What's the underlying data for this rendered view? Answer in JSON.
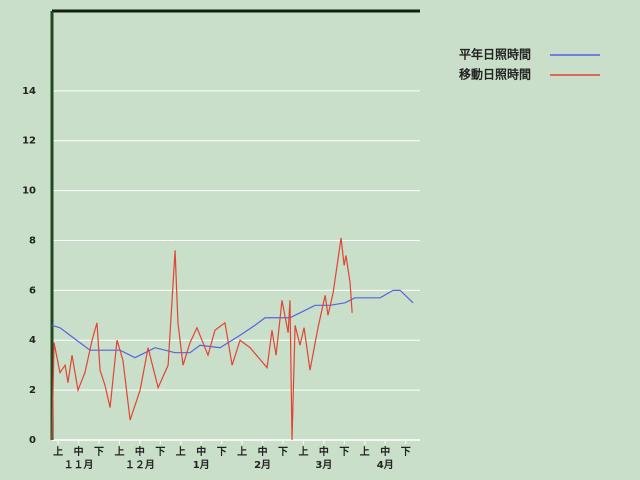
{
  "chart_data": {
    "type": "line",
    "xlim": [
      0,
      18
    ],
    "xticks": [
      {
        "value": 0.3,
        "label": "上"
      },
      {
        "value": 1.3,
        "label": "中"
      },
      {
        "value": 2.3,
        "label": "下"
      },
      {
        "value": 3.3,
        "label": "上"
      },
      {
        "value": 4.3,
        "label": "中"
      },
      {
        "value": 5.3,
        "label": "下"
      },
      {
        "value": 6.3,
        "label": "上"
      },
      {
        "value": 7.3,
        "label": "中"
      },
      {
        "value": 8.3,
        "label": "下"
      },
      {
        "value": 9.3,
        "label": "上"
      },
      {
        "value": 10.3,
        "label": "中"
      },
      {
        "value": 11.3,
        "label": "下"
      },
      {
        "value": 12.3,
        "label": "上"
      },
      {
        "value": 13.3,
        "label": "中"
      },
      {
        "value": 14.3,
        "label": "下"
      },
      {
        "value": 15.3,
        "label": "上"
      },
      {
        "value": 16.3,
        "label": "中"
      },
      {
        "value": 17.3,
        "label": "下"
      }
    ],
    "months": [
      "１１月",
      "１２月",
      "1月",
      "2月",
      "3月",
      "4月"
    ],
    "ylim": [
      0,
      17.2
    ],
    "yticks": [
      0,
      2,
      4,
      6,
      8,
      10,
      12,
      14
    ],
    "grid": true,
    "series": [
      {
        "name": "平年日照時間",
        "color": "#5464e0",
        "x": [
          0,
          0.39,
          0.88,
          1.37,
          1.86,
          3.33,
          4.06,
          5.04,
          6.02,
          6.75,
          7.24,
          8.22,
          9.2,
          9.93,
          10.42,
          11.64,
          12.13,
          12.87,
          13.6,
          14.33,
          14.82,
          16.05,
          16.68,
          17.03,
          17.66
        ],
        "values": [
          4.6,
          4.5,
          4.2,
          3.9,
          3.6,
          3.6,
          3.3,
          3.7,
          3.5,
          3.5,
          3.8,
          3.7,
          4.2,
          4.6,
          4.9,
          4.9,
          5.1,
          5.4,
          5.4,
          5.5,
          5.7,
          5.7,
          6.0,
          6.0,
          5.5
        ]
      },
      {
        "name": "移動日照時間",
        "color": "#e04434",
        "x": [
          0,
          0.1,
          0.39,
          0.64,
          0.78,
          0.98,
          1.27,
          1.61,
          1.96,
          2.2,
          2.35,
          2.59,
          2.84,
          3.18,
          3.47,
          3.82,
          4.31,
          4.7,
          5.19,
          5.68,
          6.02,
          6.16,
          6.41,
          6.75,
          7.09,
          7.63,
          7.97,
          8.46,
          8.81,
          9.2,
          9.69,
          10.52,
          10.76,
          10.96,
          11.25,
          11.55,
          11.64,
          11.74,
          11.89,
          12.13,
          12.33,
          12.62,
          13.01,
          13.36,
          13.5,
          13.75,
          14.14,
          14.29,
          14.38,
          14.58,
          14.68
        ],
        "values": [
          0,
          3.9,
          2.7,
          3.0,
          2.3,
          3.4,
          2.0,
          2.7,
          4.0,
          4.7,
          2.8,
          2.2,
          1.3,
          4.0,
          3.2,
          0.8,
          2.0,
          3.7,
          2.1,
          3.0,
          7.6,
          4.7,
          3.0,
          3.9,
          4.5,
          3.4,
          4.4,
          4.7,
          3.0,
          4.0,
          3.7,
          2.9,
          4.4,
          3.4,
          5.6,
          4.3,
          5.6,
          0,
          4.6,
          3.8,
          4.5,
          2.8,
          4.5,
          5.8,
          5.0,
          5.9,
          8.1,
          7.0,
          7.4,
          6.3,
          5.1
        ]
      }
    ]
  }
}
